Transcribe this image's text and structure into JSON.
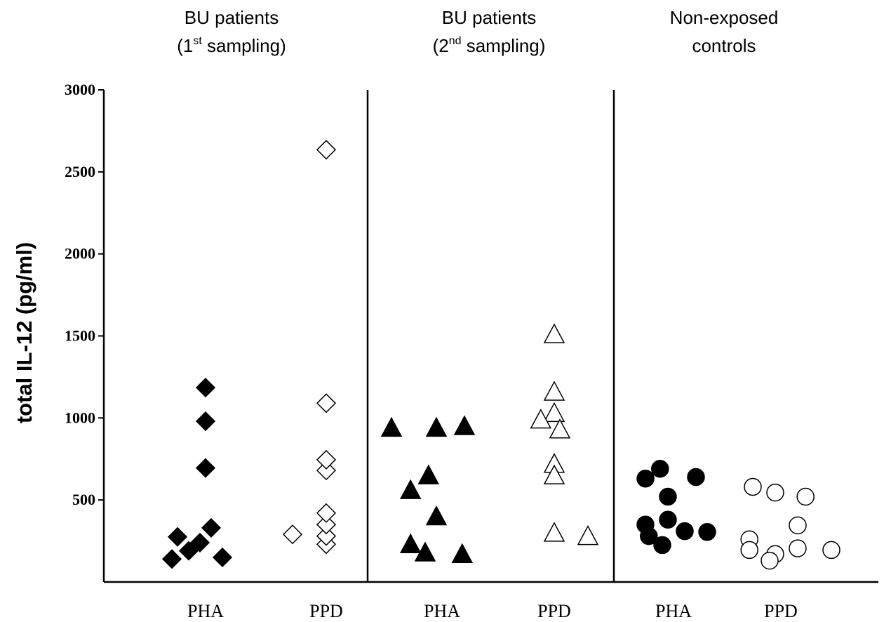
{
  "chart_data": {
    "type": "scatter",
    "ylabel": "total IL-12 (pg/ml)",
    "ylim": [
      0,
      3000
    ],
    "yticks": [
      500,
      1000,
      1500,
      2000,
      2500,
      3000
    ],
    "x_categories": [
      "PHA",
      "PPD",
      "PHA",
      "PPD",
      "PHA",
      "PPD"
    ],
    "groups": [
      {
        "title_line1": "BU patients",
        "title_pre": "(1",
        "title_sup": "st",
        "title_post": " sampling)"
      },
      {
        "title_line1": "BU patients",
        "title_pre": "(2",
        "title_sup": "nd",
        "title_post": " sampling)"
      },
      {
        "title_line1": "Non-exposed",
        "title_pre": "controls",
        "title_sup": "",
        "title_post": ""
      }
    ],
    "grid": false,
    "legend": "none",
    "series": [
      {
        "category_index": 0,
        "marker": "diamond",
        "fill": "#000000",
        "points": [
          [
            -0.25,
            275
          ],
          [
            -0.15,
            190
          ],
          [
            -0.05,
            240
          ],
          [
            0.05,
            330
          ],
          [
            0.15,
            150
          ],
          [
            -0.3,
            140
          ],
          [
            0.0,
            695
          ],
          [
            0.0,
            980
          ],
          [
            0.0,
            1185
          ]
        ]
      },
      {
        "category_index": 1,
        "marker": "diamond",
        "fill": "#ffffff",
        "points": [
          [
            -0.3,
            290
          ],
          [
            0.0,
            230
          ],
          [
            0.0,
            280
          ],
          [
            0.0,
            350
          ],
          [
            0.0,
            420
          ],
          [
            0.0,
            680
          ],
          [
            0.0,
            745
          ],
          [
            0.0,
            1090
          ],
          [
            0.0,
            2635
          ]
        ]
      },
      {
        "category_index": 2,
        "marker": "triangle",
        "fill": "#000000",
        "points": [
          [
            -0.45,
            940
          ],
          [
            -0.05,
            940
          ],
          [
            0.2,
            950
          ],
          [
            -0.28,
            560
          ],
          [
            -0.12,
            650
          ],
          [
            -0.05,
            400
          ],
          [
            -0.28,
            230
          ],
          [
            -0.15,
            180
          ],
          [
            0.18,
            170
          ]
        ]
      },
      {
        "category_index": 3,
        "marker": "triangle",
        "fill": "#ffffff",
        "points": [
          [
            0.0,
            1510
          ],
          [
            0.0,
            1160
          ],
          [
            0.0,
            1030
          ],
          [
            -0.12,
            990
          ],
          [
            0.05,
            930
          ],
          [
            0.0,
            720
          ],
          [
            0.0,
            650
          ],
          [
            0.0,
            300
          ],
          [
            0.3,
            280
          ]
        ]
      },
      {
        "category_index": 4,
        "marker": "circle",
        "fill": "#000000",
        "points": [
          [
            -0.12,
            690
          ],
          [
            -0.25,
            630
          ],
          [
            0.2,
            640
          ],
          [
            -0.05,
            520
          ],
          [
            -0.25,
            350
          ],
          [
            -0.05,
            380
          ],
          [
            -0.22,
            280
          ],
          [
            0.1,
            310
          ],
          [
            0.3,
            305
          ],
          [
            -0.1,
            225
          ]
        ]
      },
      {
        "category_index": 5,
        "marker": "circle",
        "fill": "#ffffff",
        "points": [
          [
            -0.25,
            580
          ],
          [
            -0.05,
            545
          ],
          [
            0.22,
            520
          ],
          [
            0.15,
            345
          ],
          [
            -0.28,
            260
          ],
          [
            -0.28,
            195
          ],
          [
            -0.05,
            170
          ],
          [
            -0.1,
            130
          ],
          [
            0.15,
            205
          ],
          [
            0.45,
            195
          ]
        ]
      }
    ]
  }
}
